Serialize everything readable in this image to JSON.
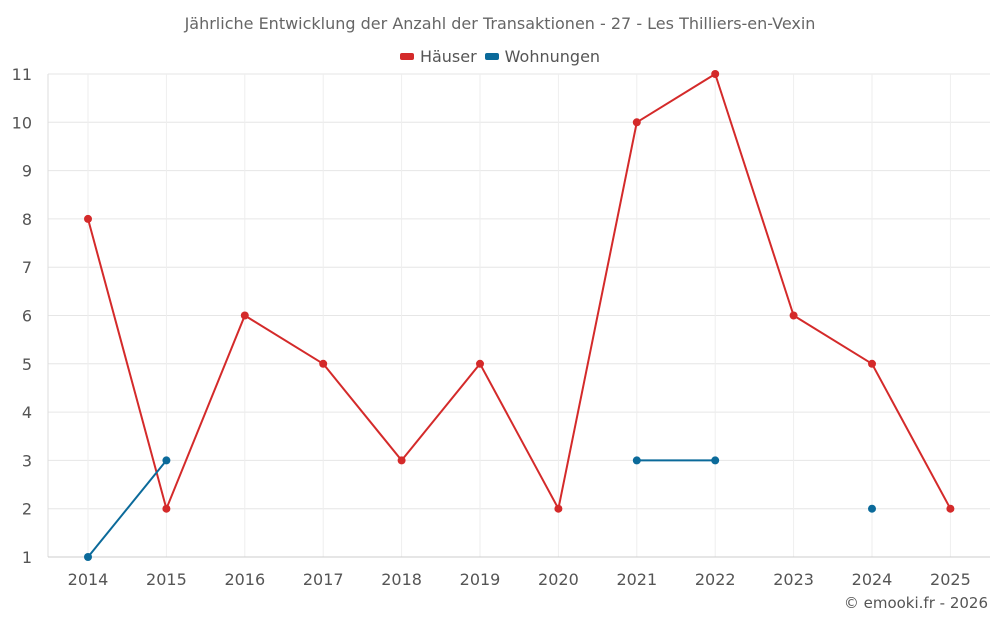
{
  "chart_data": {
    "type": "line",
    "title": "Jährliche Entwicklung der Anzahl der Transaktionen - 27 - Les Thilliers-en-Vexin",
    "categories": [
      "2014",
      "2015",
      "2016",
      "2017",
      "2018",
      "2019",
      "2020",
      "2021",
      "2022",
      "2023",
      "2024",
      "2025"
    ],
    "ylim": [
      1,
      11
    ],
    "yticks": [
      1,
      2,
      3,
      4,
      5,
      6,
      7,
      8,
      9,
      10,
      11
    ],
    "grid": true,
    "legend_position": "top-center",
    "series": [
      {
        "name": "Häuser",
        "color": "#d42a2a",
        "values": [
          8,
          2,
          6,
          5,
          3,
          5,
          2,
          10,
          11,
          6,
          5,
          2
        ]
      },
      {
        "name": "Wohnungen",
        "color": "#0b6a9a",
        "values": [
          1,
          3,
          null,
          null,
          null,
          null,
          null,
          3,
          3,
          null,
          2,
          null
        ]
      }
    ]
  },
  "credit": "© emooki.fr - 2026"
}
